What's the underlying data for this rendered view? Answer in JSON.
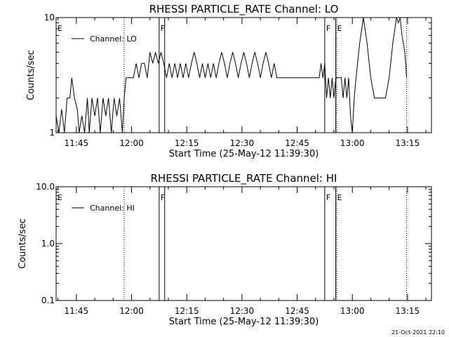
{
  "timestamp": "21-Oct-2021 22:10",
  "chart_data": [
    {
      "type": "line",
      "title": "RHESSI PARTICLE_RATE Channel: LO",
      "xlabel": "Start Time (25-May-12 11:39:30)",
      "ylabel": "Counts/sec",
      "y_scale": "log",
      "ylim": [
        1,
        10
      ],
      "xlim": [
        "11:39:30",
        "13:21:30"
      ],
      "x_ticks": [
        "11:45",
        "12:00",
        "12:15",
        "12:30",
        "12:45",
        "13:00",
        "13:15"
      ],
      "y_ticks": [
        {
          "value": 1,
          "label": "1"
        },
        {
          "value": 10,
          "label": "10"
        }
      ],
      "legend": {
        "entries": [
          "Channel: LO"
        ],
        "position": "top-left"
      },
      "markers": [
        {
          "time": "11:39:30",
          "label": "E",
          "style": "dotted"
        },
        {
          "time": "11:58:00",
          "label": "",
          "style": "dotted"
        },
        {
          "time": "12:07:30",
          "label": "F",
          "style": "solid"
        },
        {
          "time": "12:09:00",
          "label": "",
          "style": "solid"
        },
        {
          "time": "12:52:30",
          "label": "F",
          "style": "solid"
        },
        {
          "time": "12:55:30",
          "label": "E",
          "style": "solid"
        },
        {
          "time": "12:55:45",
          "label": "",
          "style": "dotted"
        },
        {
          "time": "13:14:45",
          "label": "",
          "style": "dotted"
        }
      ],
      "series": [
        {
          "name": "Channel: LO",
          "points": [
            [
              "11:39:30",
              1.4
            ],
            [
              "11:40:15",
              1.0
            ],
            [
              "11:41:00",
              1.6
            ],
            [
              "11:41:45",
              1.0
            ],
            [
              "11:42:30",
              2.0
            ],
            [
              "11:43:15",
              2.0
            ],
            [
              "11:43:45",
              3.0
            ],
            [
              "11:44:30",
              2.0
            ],
            [
              "11:45:15",
              1.6
            ],
            [
              "11:45:45",
              1.0
            ],
            [
              "11:46:30",
              1.4
            ],
            [
              "11:47:15",
              1.0
            ],
            [
              "11:48:00",
              2.0
            ],
            [
              "11:48:30",
              1.0
            ],
            [
              "11:49:15",
              2.0
            ],
            [
              "11:50:00",
              1.4
            ],
            [
              "11:50:45",
              2.0
            ],
            [
              "11:51:30",
              1.0
            ],
            [
              "11:52:15",
              2.0
            ],
            [
              "11:53:00",
              1.4
            ],
            [
              "11:53:45",
              2.0
            ],
            [
              "11:54:30",
              1.0
            ],
            [
              "11:55:15",
              2.0
            ],
            [
              "11:56:00",
              1.4
            ],
            [
              "11:56:45",
              2.0
            ],
            [
              "11:57:30",
              1.0
            ],
            [
              "11:58:00",
              2.0
            ],
            [
              "11:58:30",
              3.0
            ],
            [
              "11:59:30",
              3.0
            ],
            [
              "12:00:30",
              3.0
            ],
            [
              "12:01:15",
              4.0
            ],
            [
              "12:02:00",
              3.0
            ],
            [
              "12:02:45",
              4.0
            ],
            [
              "12:03:30",
              4.0
            ],
            [
              "12:04:15",
              3.0
            ],
            [
              "12:05:00",
              5.0
            ],
            [
              "12:05:45",
              4.0
            ],
            [
              "12:06:30",
              5.0
            ],
            [
              "12:07:15",
              4.0
            ],
            [
              "12:08:00",
              5.0
            ],
            [
              "12:08:45",
              4.0
            ],
            [
              "12:09:30",
              3.0
            ],
            [
              "12:10:15",
              4.0
            ],
            [
              "12:11:00",
              3.0
            ],
            [
              "12:11:45",
              4.0
            ],
            [
              "12:12:30",
              3.0
            ],
            [
              "12:13:15",
              4.0
            ],
            [
              "12:14:00",
              3.0
            ],
            [
              "12:14:45",
              4.0
            ],
            [
              "12:15:30",
              3.0
            ],
            [
              "12:16:15",
              4.0
            ],
            [
              "12:17:00",
              5.0
            ],
            [
              "12:17:45",
              4.0
            ],
            [
              "12:18:30",
              3.0
            ],
            [
              "12:19:15",
              4.0
            ],
            [
              "12:20:00",
              3.0
            ],
            [
              "12:20:45",
              4.0
            ],
            [
              "12:21:30",
              3.0
            ],
            [
              "12:22:15",
              4.0
            ],
            [
              "12:23:00",
              3.0
            ],
            [
              "12:23:45",
              4.0
            ],
            [
              "12:24:30",
              5.0
            ],
            [
              "12:25:15",
              4.0
            ],
            [
              "12:26:00",
              3.0
            ],
            [
              "12:26:45",
              4.0
            ],
            [
              "12:27:30",
              5.0
            ],
            [
              "12:28:15",
              4.0
            ],
            [
              "12:29:00",
              3.0
            ],
            [
              "12:29:45",
              4.0
            ],
            [
              "12:30:30",
              5.0
            ],
            [
              "12:31:15",
              4.0
            ],
            [
              "12:32:00",
              3.0
            ],
            [
              "12:32:45",
              4.0
            ],
            [
              "12:33:30",
              5.0
            ],
            [
              "12:34:15",
              4.0
            ],
            [
              "12:35:00",
              3.0
            ],
            [
              "12:35:45",
              4.0
            ],
            [
              "12:36:30",
              5.0
            ],
            [
              "12:37:15",
              4.0
            ],
            [
              "12:38:00",
              3.0
            ],
            [
              "12:38:45",
              4.0
            ],
            [
              "12:39:30",
              3.0
            ],
            [
              "12:40:15",
              3.0
            ],
            [
              "12:41:00",
              3.0
            ],
            [
              "12:42:00",
              3.0
            ],
            [
              "12:43:00",
              3.0
            ],
            [
              "12:44:00",
              3.0
            ],
            [
              "12:45:00",
              3.0
            ],
            [
              "12:46:00",
              3.0
            ],
            [
              "12:47:00",
              3.0
            ],
            [
              "12:48:00",
              3.0
            ],
            [
              "12:49:00",
              3.0
            ],
            [
              "12:50:00",
              3.0
            ],
            [
              "12:51:00",
              3.0
            ],
            [
              "12:51:30",
              4.0
            ],
            [
              "12:52:00",
              3.0
            ],
            [
              "12:52:30",
              4.0
            ],
            [
              "12:53:00",
              2.0
            ],
            [
              "12:53:30",
              3.0
            ],
            [
              "12:54:00",
              2.0
            ],
            [
              "12:54:30",
              3.0
            ],
            [
              "12:55:00",
              2.0
            ],
            [
              "12:55:30",
              3.0
            ],
            [
              "12:56:00",
              3.0
            ],
            [
              "12:57:00",
              3.0
            ],
            [
              "12:57:30",
              2.0
            ],
            [
              "12:58:00",
              3.0
            ],
            [
              "12:58:30",
              2.0
            ],
            [
              "12:59:00",
              3.0
            ],
            [
              "12:59:30",
              1.4
            ],
            [
              "13:00:00",
              1.0
            ],
            [
              "13:00:30",
              2.0
            ],
            [
              "13:01:00",
              3.0
            ],
            [
              "13:02:00",
              6.0
            ],
            [
              "13:03:00",
              10.0
            ],
            [
              "13:04:00",
              6.0
            ],
            [
              "13:05:00",
              3.0
            ],
            [
              "13:06:00",
              2.0
            ],
            [
              "13:07:00",
              2.0
            ],
            [
              "13:08:00",
              2.0
            ],
            [
              "13:09:00",
              2.0
            ],
            [
              "13:10:00",
              3.0
            ],
            [
              "13:11:00",
              6.0
            ],
            [
              "13:12:00",
              10.0
            ],
            [
              "13:12:30",
              9.0
            ],
            [
              "13:13:00",
              10.0
            ],
            [
              "13:13:30",
              7.0
            ],
            [
              "13:14:15",
              5.0
            ],
            [
              "13:14:45",
              3.0
            ]
          ]
        }
      ]
    },
    {
      "type": "line",
      "title": "RHESSI PARTICLE_RATE Channel: HI",
      "xlabel": "Start Time (25-May-12 11:39:30)",
      "ylabel": "Counts/sec",
      "y_scale": "log",
      "ylim": [
        0.1,
        10
      ],
      "xlim": [
        "11:39:30",
        "13:21:30"
      ],
      "x_ticks": [
        "11:45",
        "12:00",
        "12:15",
        "12:30",
        "12:45",
        "13:00",
        "13:15"
      ],
      "y_ticks": [
        {
          "value": 0.1,
          "label": "0.1"
        },
        {
          "value": 1,
          "label": "1.0"
        },
        {
          "value": 10,
          "label": "10.0"
        }
      ],
      "legend": {
        "entries": [
          "Channel: HI"
        ],
        "position": "top-left"
      },
      "markers": [
        {
          "time": "11:39:30",
          "label": "E",
          "style": "dotted"
        },
        {
          "time": "11:58:00",
          "label": "",
          "style": "dotted"
        },
        {
          "time": "12:07:30",
          "label": "F",
          "style": "solid"
        },
        {
          "time": "12:09:00",
          "label": "",
          "style": "solid"
        },
        {
          "time": "12:52:30",
          "label": "F",
          "style": "solid"
        },
        {
          "time": "12:55:30",
          "label": "E",
          "style": "solid"
        },
        {
          "time": "12:55:45",
          "label": "",
          "style": "dotted"
        },
        {
          "time": "13:14:45",
          "label": "",
          "style": "dotted"
        }
      ],
      "series": [
        {
          "name": "Channel: HI",
          "points": []
        }
      ]
    }
  ]
}
